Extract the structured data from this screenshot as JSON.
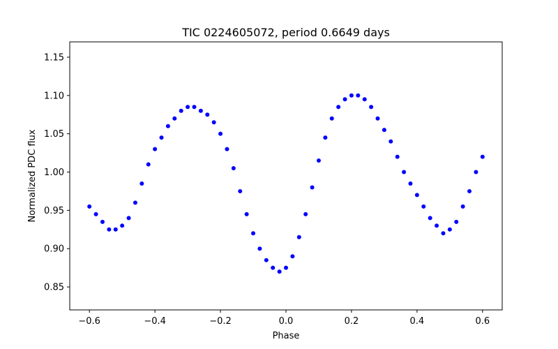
{
  "chart_data": {
    "type": "scatter",
    "title": "TIC 0224605072, period 0.6649 days",
    "xlabel": "Phase",
    "ylabel": "Normalized PDC flux",
    "xlim": [
      -0.66,
      0.66
    ],
    "ylim": [
      0.82,
      1.17
    ],
    "xticks": [
      -0.6,
      -0.4,
      -0.2,
      0.0,
      0.2,
      0.4,
      0.6
    ],
    "xtick_labels": [
      "−0.6",
      "−0.4",
      "−0.2",
      "0.0",
      "0.2",
      "0.4",
      "0.6"
    ],
    "yticks": [
      0.85,
      0.9,
      0.95,
      1.0,
      1.05,
      1.1,
      1.15
    ],
    "ytick_labels": [
      "0.85",
      "0.90",
      "0.95",
      "1.00",
      "1.05",
      "1.10",
      "1.15"
    ],
    "grid": false,
    "marker_color": "#0000ff",
    "series": [
      {
        "x": [
          -0.6,
          -0.58,
          -0.56,
          -0.54,
          -0.52,
          -0.5,
          -0.48,
          -0.46,
          -0.44,
          -0.42,
          -0.4,
          -0.38,
          -0.36,
          -0.34,
          -0.32,
          -0.3,
          -0.28,
          -0.26,
          -0.24,
          -0.22,
          -0.2,
          -0.18,
          -0.16,
          -0.14,
          -0.12,
          -0.1,
          -0.08,
          -0.06,
          -0.04,
          -0.02,
          0.0,
          0.02,
          0.04,
          0.06,
          0.08,
          0.1,
          0.12,
          0.14,
          0.16,
          0.18,
          0.2,
          0.22,
          0.24,
          0.26,
          0.28,
          0.3,
          0.32,
          0.34,
          0.36,
          0.38,
          0.4,
          0.42,
          0.44,
          0.46,
          0.48,
          0.5,
          0.52,
          0.54,
          0.56,
          0.58,
          0.6
        ],
        "y": [
          0.955,
          0.945,
          0.935,
          0.925,
          0.925,
          0.93,
          0.94,
          0.96,
          0.985,
          1.01,
          1.03,
          1.045,
          1.06,
          1.07,
          1.08,
          1.085,
          1.085,
          1.08,
          1.075,
          1.065,
          1.05,
          1.03,
          1.005,
          0.975,
          0.945,
          0.92,
          0.9,
          0.885,
          0.875,
          0.87,
          0.875,
          0.89,
          0.915,
          0.945,
          0.98,
          1.015,
          1.045,
          1.07,
          1.085,
          1.095,
          1.1,
          1.1,
          1.095,
          1.085,
          1.07,
          1.055,
          1.04,
          1.02,
          1.0,
          0.985,
          0.97,
          0.955,
          0.94,
          0.93,
          0.92,
          0.925,
          0.935,
          0.955,
          0.975,
          1.0,
          1.02
        ]
      }
    ]
  }
}
